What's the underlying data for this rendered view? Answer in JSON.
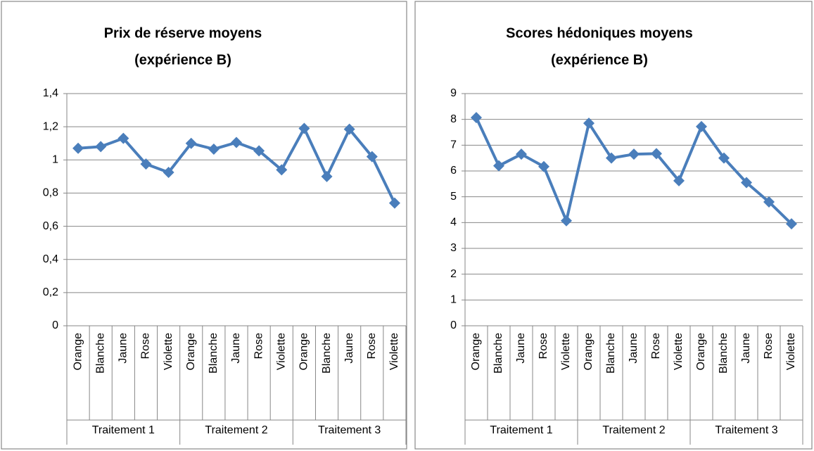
{
  "chart_data": [
    {
      "type": "line",
      "title": [
        "Prix de réserve moyens",
        "(expérience B)"
      ],
      "groups": [
        {
          "name": "Traitement 1",
          "categories": [
            "Orange",
            "Blanche",
            "Jaune",
            "Rose",
            "Violette"
          ]
        },
        {
          "name": "Traitement 2",
          "categories": [
            "Orange",
            "Blanche",
            "Jaune",
            "Rose",
            "Violette"
          ]
        },
        {
          "name": "Traitement 3",
          "categories": [
            "Orange",
            "Blanche",
            "Jaune",
            "Rose",
            "Violette"
          ]
        }
      ],
      "series": [
        {
          "color": "#4a7ebb",
          "values": [
            1.07,
            1.08,
            1.13,
            0.975,
            0.925,
            1.1,
            1.065,
            1.105,
            1.055,
            0.94,
            1.19,
            0.9,
            1.185,
            1.02,
            0.74
          ]
        }
      ],
      "ylim": [
        0,
        1.4
      ],
      "yticks": [
        0,
        {
          "value": 0.2,
          "label": "0,2"
        },
        {
          "value": 0.4,
          "label": "0,4"
        },
        {
          "value": 0.6,
          "label": "0,6"
        },
        {
          "value": 0.8,
          "label": "0,8"
        },
        1,
        {
          "value": 1.2,
          "label": "1,2"
        },
        {
          "value": 1.4,
          "label": "1,4"
        }
      ],
      "grid": true
    },
    {
      "type": "line",
      "title": [
        "Scores hédoniques moyens",
        "(expérience B)"
      ],
      "groups": [
        {
          "name": "Traitement 1",
          "categories": [
            "Orange",
            "Blanche",
            "Jaune",
            "Rose",
            "Violette"
          ]
        },
        {
          "name": "Traitement 2",
          "categories": [
            "Orange",
            "Blanche",
            "Jaune",
            "Rose",
            "Violette"
          ]
        },
        {
          "name": "Traitement 3",
          "categories": [
            "Orange",
            "Blanche",
            "Jaune",
            "Rose",
            "Violette"
          ]
        }
      ],
      "series": [
        {
          "color": "#4a7ebb",
          "values": [
            8.07,
            6.2,
            6.65,
            6.17,
            4.07,
            7.85,
            6.5,
            6.65,
            6.67,
            5.62,
            7.72,
            6.5,
            5.55,
            4.8,
            3.95
          ]
        }
      ],
      "ylim": [
        0,
        9
      ],
      "yticks": [
        0,
        1,
        2,
        3,
        4,
        5,
        6,
        7,
        8,
        9
      ],
      "grid": true
    }
  ]
}
